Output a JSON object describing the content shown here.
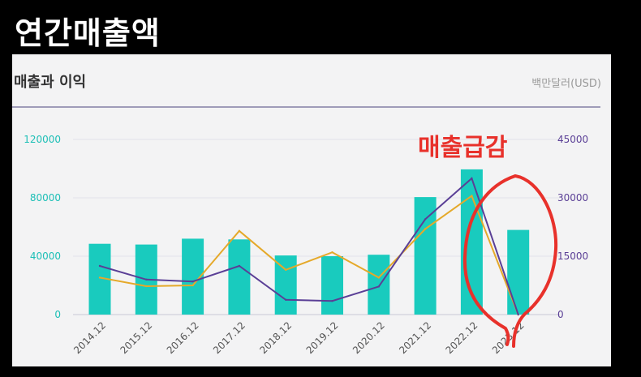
{
  "page_title": "연간매출액",
  "card": {
    "title": "매출과 이익",
    "unit": "백만달러(USD)"
  },
  "annotation": {
    "text": "매출급감",
    "color": "#e8312b"
  },
  "colors": {
    "bar": "#19cbbe",
    "line_orange": "#e5a92a",
    "line_purple": "#5a3f96",
    "left_axis": "#1cbfb6",
    "right_axis": "#5a3f96"
  },
  "chart_data": {
    "type": "bar",
    "categories": [
      "2014.12",
      "2015.12",
      "2016.12",
      "2017.12",
      "2018.12",
      "2019.12",
      "2020.12",
      "2021.12",
      "2022.12",
      "2023.12"
    ],
    "series": [
      {
        "type": "bar",
        "axis": "left",
        "values": [
          48500,
          48000,
          52000,
          51500,
          40500,
          40000,
          41000,
          80500,
          99500,
          58000
        ]
      },
      {
        "type": "line",
        "axis": "right",
        "values": [
          9500,
          7300,
          7500,
          21500,
          11500,
          16000,
          9500,
          22000,
          30500,
          0
        ]
      },
      {
        "type": "line",
        "axis": "right",
        "values": [
          12500,
          9000,
          8500,
          12500,
          3800,
          3500,
          7200,
          24500,
          35000,
          0
        ]
      }
    ],
    "y_left": {
      "ticks": [
        "0",
        "40000",
        "80000",
        "120000"
      ],
      "range": [
        0,
        120000
      ]
    },
    "y_right": {
      "ticks": [
        "0",
        "15000",
        "30000",
        "45000"
      ],
      "range": [
        0,
        45000
      ]
    },
    "grid": true
  }
}
